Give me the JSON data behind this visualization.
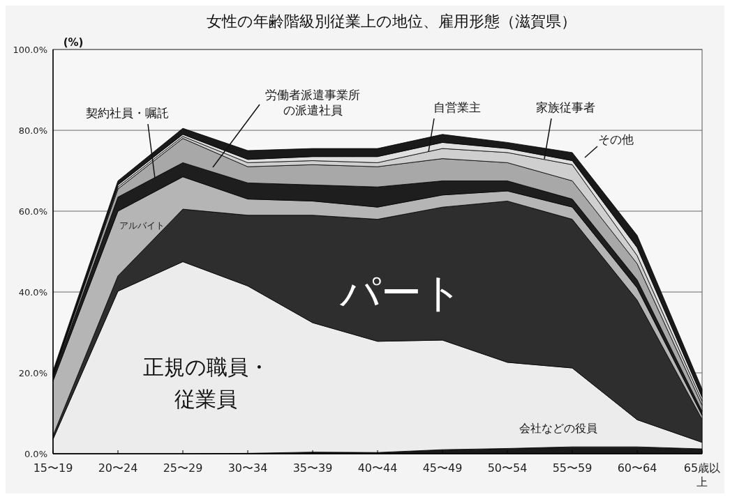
{
  "chart_data": {
    "type": "area",
    "stacked": true,
    "title": "女性の年齢階級別従業上の地位、雇用形態（滋賀県）",
    "ylabel": "(%)",
    "categories": [
      "15〜19",
      "20〜24",
      "25〜29",
      "30〜34",
      "35〜39",
      "40〜44",
      "45〜49",
      "50〜54",
      "55〜59",
      "60〜64",
      "65歳以上"
    ],
    "ylim": [
      0,
      100
    ],
    "yticks": [
      {
        "value": 0,
        "label": "0.0%"
      },
      {
        "value": 20,
        "label": "20.0%"
      },
      {
        "value": 40,
        "label": "40.0%"
      },
      {
        "value": 60,
        "label": "60.0%"
      },
      {
        "value": 80,
        "label": "80.0%"
      },
      {
        "value": 100,
        "label": "100.0%"
      }
    ],
    "grid": "y",
    "series": [
      {
        "name": "会社などの役員",
        "color": "#1a1a1a",
        "values": [
          0,
          0,
          0,
          0.1,
          0.4,
          0.3,
          1.0,
          1.3,
          1.7,
          1.7,
          1.2
        ]
      },
      {
        "name": "正規の職員・従業員",
        "color": "#ececec",
        "values": [
          3.6,
          40.2,
          47.5,
          41.4,
          32.0,
          27.5,
          27.1,
          21.3,
          19.5,
          6.7,
          1.6
        ]
      },
      {
        "name": "パート",
        "color": "#2e2e2e",
        "values": [
          0.9,
          3.8,
          13.0,
          17.5,
          26.6,
          30.2,
          32.9,
          39.9,
          36.8,
          29.6,
          5.7
        ]
      },
      {
        "name": "アルバイト",
        "color": "#b5b5b5",
        "values": [
          13.5,
          16.0,
          8.0,
          4.0,
          3.5,
          3.0,
          3.0,
          2.5,
          3.0,
          3.0,
          1.0
        ]
      },
      {
        "name": "契約社員・嘱託",
        "color": "#1e1e1e",
        "values": [
          1.0,
          3.5,
          3.5,
          4.0,
          4.0,
          5.0,
          3.5,
          2.5,
          2.0,
          2.0,
          1.0
        ]
      },
      {
        "name": "労働者派遣事業所の派遣社員",
        "color": "#a8a8a8",
        "values": [
          0.3,
          2.0,
          6.0,
          4.0,
          5.0,
          5.0,
          5.5,
          4.5,
          4.5,
          4.0,
          1.5
        ]
      },
      {
        "name": "自営業主",
        "color": "#cfcfcf",
        "values": [
          0.2,
          0.5,
          0.5,
          1.0,
          1.0,
          1.0,
          2.5,
          2.5,
          4.0,
          2.0,
          1.0
        ]
      },
      {
        "name": "家族従事者",
        "color": "#e0e0e0",
        "values": [
          0.2,
          0.5,
          0.5,
          0.8,
          1.0,
          1.5,
          1.5,
          1.0,
          1.0,
          2.0,
          1.0
        ]
      },
      {
        "name": "その他",
        "color": "#1a1a1a",
        "values": [
          0.8,
          1.0,
          1.5,
          2.2,
          2.0,
          2.0,
          2.0,
          1.5,
          2.0,
          3.0,
          2.0
        ]
      }
    ]
  }
}
